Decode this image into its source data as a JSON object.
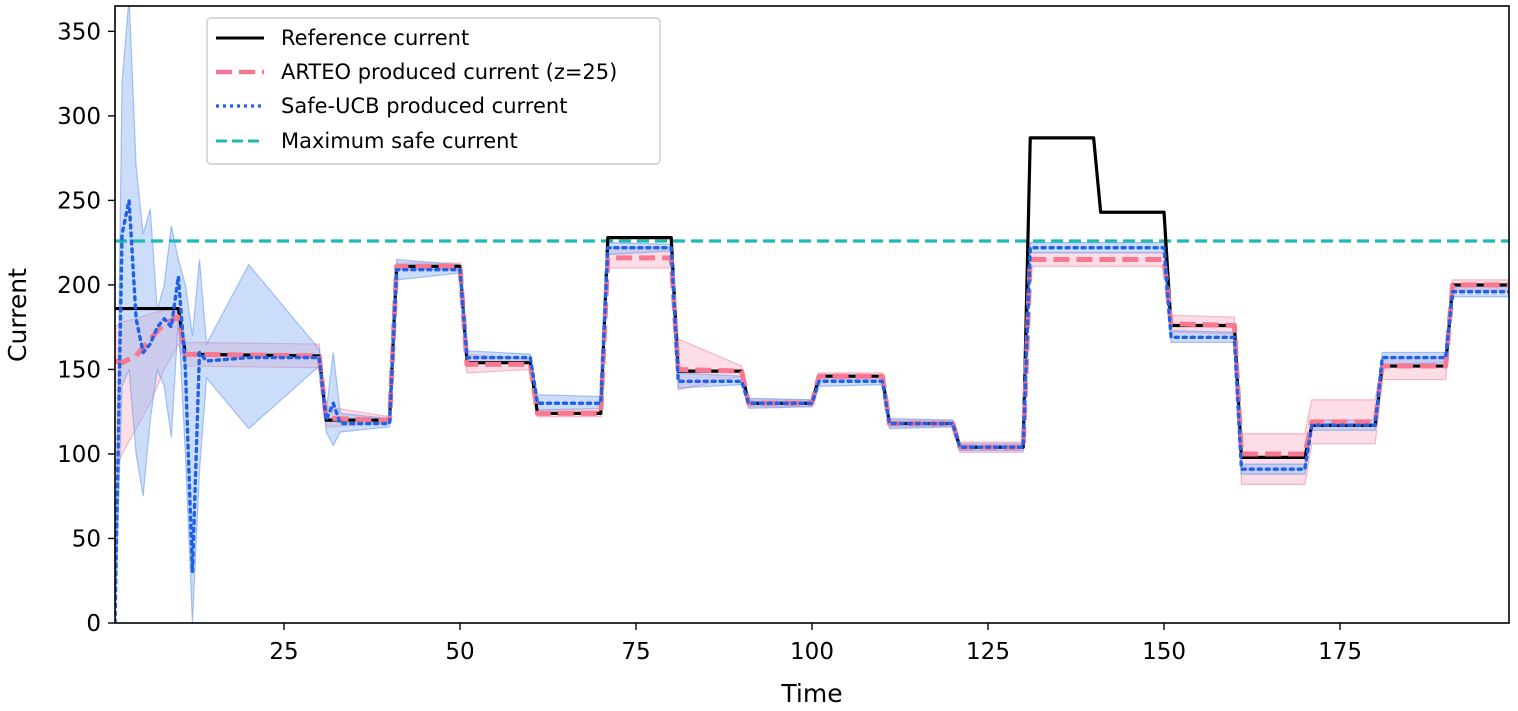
{
  "chart_data": {
    "type": "line",
    "xlabel": "Time",
    "ylabel": "Current",
    "xlim": [
      1,
      199
    ],
    "ylim": [
      0,
      365
    ],
    "xticks": [
      25,
      50,
      75,
      100,
      125,
      150,
      175
    ],
    "yticks": [
      0,
      50,
      100,
      150,
      200,
      250,
      300,
      350
    ],
    "grid": false,
    "legend_position": "top-left",
    "series": [
      {
        "name": "Reference current",
        "style": "solid",
        "color": "#000000",
        "x": [
          1,
          10,
          11,
          30,
          31,
          40,
          41,
          50,
          51,
          60,
          61,
          70,
          71,
          80,
          81,
          90,
          91,
          100,
          101,
          110,
          111,
          120,
          121,
          130,
          131,
          140,
          141,
          150,
          151,
          160,
          161,
          170,
          171,
          180,
          181,
          190,
          191,
          199
        ],
        "y": [
          186,
          186,
          159,
          158,
          120,
          120,
          211,
          211,
          154,
          154,
          124,
          124,
          228,
          228,
          149,
          149,
          130,
          130,
          146,
          146,
          118,
          118,
          104,
          104,
          287,
          287,
          243,
          243,
          176,
          176,
          98,
          98,
          117,
          117,
          152,
          152,
          200,
          200
        ]
      },
      {
        "name": "ARTEO produced current (z=25)",
        "style": "dashed",
        "color": "#f87891",
        "x": [
          1,
          2,
          4,
          6,
          8,
          10,
          11,
          30,
          31,
          40,
          41,
          50,
          51,
          60,
          61,
          70,
          71,
          80,
          81,
          90,
          91,
          100,
          101,
          110,
          111,
          120,
          121,
          130,
          131,
          140,
          141,
          150,
          151,
          160,
          161,
          170,
          171,
          180,
          181,
          190,
          191,
          199
        ],
        "y": [
          155,
          154,
          158,
          168,
          177,
          181,
          159,
          158,
          121,
          120,
          211,
          211,
          153,
          153,
          124,
          124,
          216,
          216,
          150,
          149,
          130,
          130,
          146,
          146,
          118,
          118,
          104,
          104,
          215,
          215,
          215,
          215,
          177,
          176,
          100,
          100,
          119,
          119,
          152,
          152,
          200,
          200
        ],
        "band_upper": [
          175,
          178,
          180,
          183,
          185,
          186,
          166,
          165,
          128,
          122,
          213,
          213,
          159,
          156,
          126,
          126,
          222,
          222,
          168,
          152,
          132,
          132,
          148,
          148,
          120,
          120,
          107,
          107,
          219,
          219,
          219,
          219,
          182,
          181,
          112,
          112,
          132,
          132,
          157,
          157,
          203,
          203
        ],
        "band_lower": [
          90,
          100,
          115,
          130,
          150,
          165,
          152,
          151,
          116,
          118,
          209,
          209,
          148,
          150,
          122,
          122,
          210,
          210,
          138,
          146,
          128,
          128,
          144,
          144,
          116,
          116,
          101,
          101,
          211,
          211,
          211,
          211,
          172,
          171,
          82,
          82,
          106,
          106,
          144,
          144,
          197,
          197
        ]
      },
      {
        "name": "Safe-UCB produced current",
        "style": "dotted",
        "color": "#1f61e8",
        "x": [
          1,
          2,
          3,
          4,
          5,
          6,
          7,
          8,
          9,
          10,
          11,
          12,
          13,
          14,
          20,
          30,
          31,
          32,
          33,
          40,
          41,
          50,
          51,
          60,
          61,
          70,
          71,
          80,
          81,
          90,
          91,
          100,
          101,
          110,
          111,
          120,
          121,
          130,
          131,
          150,
          151,
          160,
          161,
          170,
          171,
          180,
          181,
          190,
          191,
          199
        ],
        "y": [
          0,
          230,
          250,
          180,
          160,
          165,
          175,
          180,
          175,
          205,
          150,
          30,
          160,
          155,
          157,
          157,
          120,
          130,
          118,
          118,
          209,
          209,
          157,
          157,
          130,
          130,
          222,
          222,
          143,
          143,
          130,
          130,
          143,
          143,
          118,
          118,
          104,
          104,
          222,
          222,
          169,
          169,
          91,
          91,
          117,
          117,
          157,
          157,
          196,
          196
        ],
        "band_upper": [
          0,
          320,
          370,
          270,
          230,
          245,
          185,
          200,
          235,
          215,
          200,
          170,
          215,
          165,
          212,
          162,
          125,
          160,
          124,
          121,
          215,
          212,
          161,
          159,
          135,
          134,
          225,
          224,
          148,
          146,
          133,
          132,
          147,
          146,
          121,
          120,
          106,
          106,
          225,
          225,
          173,
          172,
          94,
          94,
          120,
          120,
          160,
          160,
          199,
          199
        ],
        "band_lower": [
          0,
          140,
          150,
          100,
          75,
          120,
          150,
          140,
          110,
          180,
          100,
          0,
          90,
          145,
          115,
          152,
          113,
          105,
          113,
          116,
          203,
          207,
          153,
          155,
          126,
          127,
          218,
          220,
          139,
          141,
          127,
          128,
          140,
          141,
          115,
          116,
          102,
          102,
          219,
          219,
          166,
          166,
          88,
          88,
          114,
          114,
          153,
          154,
          193,
          193
        ]
      },
      {
        "name": "Maximum safe current",
        "style": "dashed",
        "color": "#1fbab4",
        "x": [
          1,
          199
        ],
        "y": [
          226,
          226
        ]
      }
    ]
  }
}
